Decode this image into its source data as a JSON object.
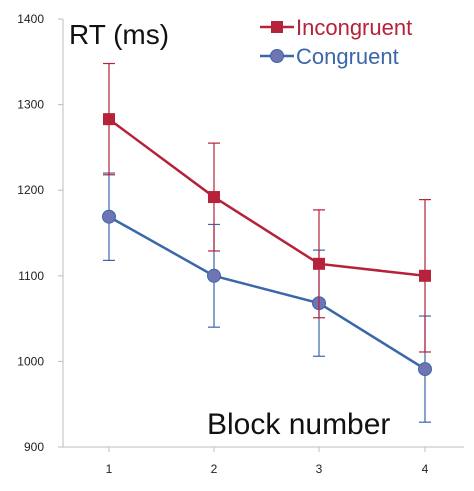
{
  "chart_data": {
    "type": "line",
    "title": "RT (ms)",
    "xlabel": "Block number",
    "ylabel": "",
    "categories": [
      "1",
      "2",
      "3",
      "4"
    ],
    "ylim": [
      900,
      1400
    ],
    "yticks": [
      900,
      1000,
      1100,
      1200,
      1300,
      1400
    ],
    "grid": false,
    "legend_position": "top-right",
    "series": [
      {
        "name": "Incongruent",
        "color": "#b5223a",
        "marker": "square",
        "values": [
          1283,
          1192,
          1114,
          1100
        ],
        "error": [
          65,
          63,
          63,
          89
        ]
      },
      {
        "name": "Congruent",
        "color": "#3a66aa",
        "marker": "circle",
        "values": [
          1169,
          1100,
          1068,
          991
        ],
        "error": [
          51,
          60,
          62,
          62
        ]
      }
    ]
  }
}
